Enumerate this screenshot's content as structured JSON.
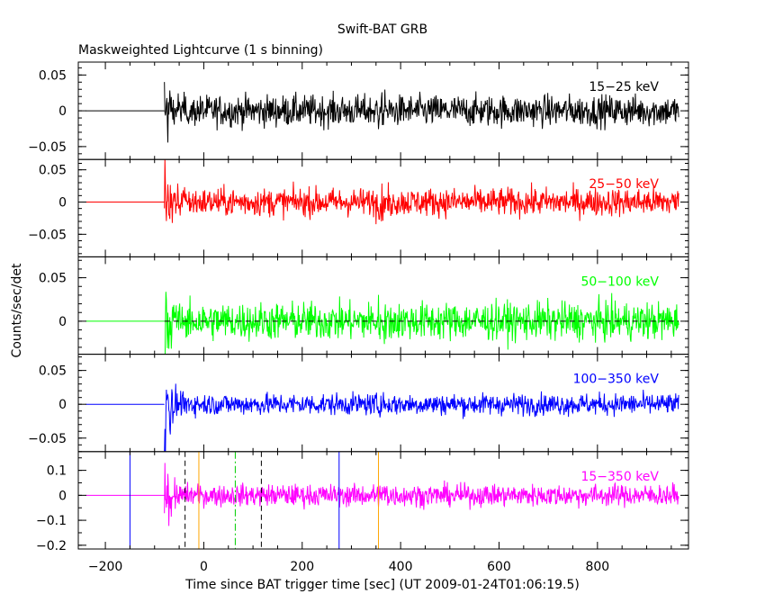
{
  "chart_data": {
    "type": "line",
    "title": "Swift-BAT GRB",
    "subtitle": "Maskweighted Lightcurve (1 s binning)",
    "xlabel": "Time since BAT trigger time [sec] (UT 2009-01-24T01:06:19.5)",
    "ylabel": "Counts/sec/det",
    "xlim": [
      -255,
      985
    ],
    "x_ticks": [
      -200,
      0,
      200,
      400,
      600,
      800
    ],
    "data_start": -80,
    "data_end": 965,
    "pre_trigger_start": -240,
    "panels": [
      {
        "name": "15-25 keV",
        "label": "15−25 keV",
        "color": "#000000",
        "ylim": [
          -0.068,
          0.068
        ],
        "y_ticks": [
          0.05,
          0,
          -0.05
        ],
        "y_tick_labels": [
          "0.05",
          "0",
          "−0.05"
        ],
        "noise_sigma": 0.011,
        "burst_amp": 0.042
      },
      {
        "name": "25-50 keV",
        "label": "25−50 keV",
        "color": "#ff0000",
        "ylim": [
          -0.085,
          0.066
        ],
        "y_ticks": [
          0.05,
          0,
          -0.05
        ],
        "y_tick_labels": [
          "0.05",
          "0",
          "−0.05"
        ],
        "noise_sigma": 0.011,
        "burst_amp": 0.05
      },
      {
        "name": "50-100 keV",
        "label": "50−100 keV",
        "color": "#00ff00",
        "ylim": [
          -0.038,
          0.074
        ],
        "y_ticks": [
          0.05,
          0
        ],
        "y_tick_labels": [
          "0.05",
          "0"
        ],
        "noise_sigma": 0.011,
        "burst_amp": 0.035,
        "zero_dashed": true
      },
      {
        "name": "100-350 keV",
        "label": "100−350 keV",
        "color": "#0000ff",
        "ylim": [
          -0.07,
          0.074
        ],
        "y_ticks": [
          0.05,
          0,
          -0.05
        ],
        "y_tick_labels": [
          "0.05",
          "0",
          "−0.05"
        ],
        "noise_sigma": 0.008,
        "burst_amp": 0.045
      },
      {
        "name": "15-350 keV",
        "label": "15−350 keV",
        "color": "#ff00ff",
        "ylim": [
          -0.215,
          0.175
        ],
        "y_ticks": [
          0.1,
          0,
          -0.1,
          -0.2
        ],
        "y_tick_labels": [
          "0.1",
          "0",
          "−0.1",
          "−0.2"
        ],
        "minor_step": 0.05,
        "noise_sigma": 0.022,
        "burst_amp": 0.085,
        "markers": [
          {
            "x": -150,
            "color": "#0000ff",
            "dash": "none"
          },
          {
            "x": 275,
            "color": "#0000ff",
            "dash": "none"
          },
          {
            "x": -10,
            "color": "#ffa500",
            "dash": "none"
          },
          {
            "x": 355,
            "color": "#ffa500",
            "dash": "none"
          },
          {
            "x": -38,
            "color": "#000000",
            "dash": "6,4"
          },
          {
            "x": 117,
            "color": "#000000",
            "dash": "6,4"
          },
          {
            "x": 64,
            "color": "#00cc00",
            "dash": "8,3,2,3"
          }
        ]
      }
    ]
  }
}
